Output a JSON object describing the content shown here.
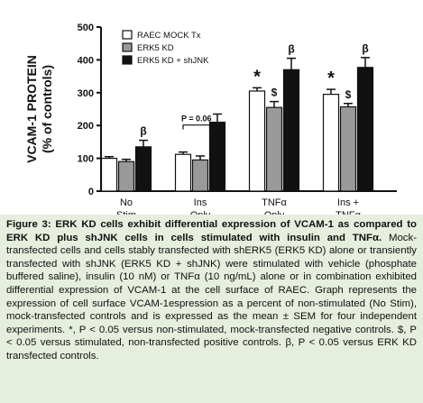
{
  "chart_data": {
    "type": "bar",
    "ylabel": "VCAM-1 PROTEIN\n(% of controls)",
    "categories": [
      "No\nStim",
      "Ins\nOnly",
      "TNFα\nOnly",
      "Ins +\nTNFα"
    ],
    "series": [
      {
        "name": "RAEC MOCK Tx",
        "color": "#ffffff",
        "values": [
          100,
          112,
          305,
          295
        ],
        "errors": [
          5,
          7,
          10,
          15
        ],
        "markers": [
          null,
          null,
          "*",
          "*"
        ]
      },
      {
        "name": "ERK5 KD",
        "color": "#999999",
        "values": [
          90,
          95,
          255,
          257
        ],
        "errors": [
          7,
          12,
          18,
          10
        ],
        "markers": [
          null,
          null,
          "$",
          "$"
        ]
      },
      {
        "name": "ERK5 KD + shJNK",
        "color": "#111111",
        "values": [
          135,
          210,
          370,
          377
        ],
        "errors": [
          20,
          25,
          35,
          30
        ],
        "markers": [
          "β",
          null,
          "β",
          "β"
        ]
      }
    ],
    "annotation": "P = 0.06",
    "ylim": [
      0,
      500
    ],
    "yticks": [
      0,
      100,
      200,
      300,
      400,
      500
    ],
    "legend": "upper left"
  },
  "caption": {
    "title": "Figure 3: ERK KD cells exhibit differential expression of VCAM-1 as compared to ERK KD plus shJNK cells in cells stimulated with insulin and TNFα.",
    "body": "Mock-transfected cells and cells stably transfected with shERK5 (ERK5 KD) alone or transiently transfected with shJNK (ERK5 KD + shJNK) were stimulated with vehicle (phosphate buffered saline), insulin (10 nM) or TNFα (10 ng/mL) alone or in combination exhibited differential expression of VCAM-1 at the cell surface of RAEC. Graph represents the expression of cell surface VCAM-1espression as a percent of non-stimulated (No Stim), mock-transfected controls and is expressed as the mean ± SEM for four independent experiments. *, P < 0.05 versus non-stimulated, mock-transfected negative controls. $, P < 0.05 versus stimulated, non-transfected positive controls. β, P < 0.05 versus ERK KD transfected controls."
  }
}
